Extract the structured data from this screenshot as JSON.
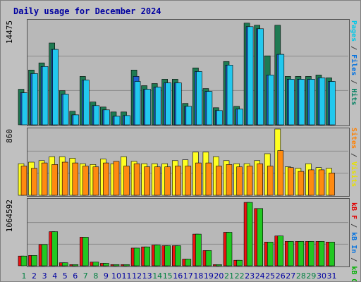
{
  "title": "Daily usage for December 2024",
  "legends": {
    "top": [
      {
        "text": "Pages",
        "color": "#00c8e8"
      },
      {
        "text": " / ",
        "color": "#404040"
      },
      {
        "text": "Files",
        "color": "#0070e0"
      },
      {
        "text": " / ",
        "color": "#404040"
      },
      {
        "text": "Hits",
        "color": "#008060"
      }
    ],
    "mid": [
      {
        "text": "Sites",
        "color": "#ff8000"
      },
      {
        "text": " / ",
        "color": "#404040"
      },
      {
        "text": "Visits",
        "color": "#e8e000"
      }
    ],
    "bot": [
      {
        "text": "kB F",
        "color": "#e00000"
      },
      {
        "text": " / ",
        "color": "#404040"
      },
      {
        "text": "kB In",
        "color": "#0070e0"
      },
      {
        "text": " / ",
        "color": "#404040"
      },
      {
        "text": "kB Out",
        "color": "#00b000"
      }
    ]
  },
  "colors": {
    "hits": "#1e7a52",
    "files": "#1f5fd0",
    "pages": "#22c8ee",
    "visits": "#ffff22",
    "sites": "#ff8a10",
    "kbout": "#22c822",
    "kbf": "#ee1111",
    "weekend_label": "#008040",
    "weekday_label": "#0000a0"
  },
  "chart_data": [
    {
      "type": "bar",
      "title": "Daily usage for December 2024",
      "categories": [
        "1",
        "2",
        "3",
        "4",
        "5",
        "6",
        "7",
        "8",
        "9",
        "10",
        "11",
        "12",
        "13",
        "14",
        "15",
        "16",
        "17",
        "18",
        "19",
        "20",
        "21",
        "22",
        "23",
        "24",
        "25",
        "26",
        "27",
        "28",
        "29",
        "30",
        "31"
      ],
      "weekend_days": [
        "1",
        "7",
        "8",
        "14",
        "15",
        "21",
        "22",
        "28",
        "29"
      ],
      "ymax_label": "14475",
      "ylim": [
        0,
        14475
      ],
      "series": [
        {
          "name": "Hits",
          "values": [
            5000,
            7700,
            8700,
            11500,
            4800,
            1900,
            6800,
            3200,
            2500,
            1800,
            1800,
            7700,
            5500,
            5800,
            6400,
            6400,
            3000,
            8000,
            5100,
            2400,
            8900,
            2600,
            14300,
            14000,
            9700,
            14000,
            6800,
            6800,
            6800,
            7000,
            6600
          ]
        },
        {
          "name": "Files",
          "values": [
            4500,
            7200,
            8200,
            10600,
            4300,
            1400,
            6300,
            2700,
            2100,
            1200,
            1300,
            6800,
            5000,
            5300,
            5900,
            5900,
            2600,
            7500,
            4700,
            2000,
            8400,
            2200,
            13800,
            13500,
            7000,
            9900,
            6400,
            6400,
            6400,
            6600,
            6100
          ]
        },
        {
          "name": "Pages",
          "values": [
            4500,
            7200,
            8200,
            10600,
            4300,
            1400,
            6300,
            2700,
            2100,
            1200,
            1300,
            6100,
            5000,
            5300,
            5900,
            5900,
            2600,
            7500,
            4700,
            2000,
            8400,
            2200,
            13800,
            13500,
            7000,
            9900,
            6400,
            6400,
            6400,
            6600,
            6100
          ]
        }
      ]
    },
    {
      "type": "bar",
      "categories": [
        "1",
        "2",
        "3",
        "4",
        "5",
        "6",
        "7",
        "8",
        "9",
        "10",
        "11",
        "12",
        "13",
        "14",
        "15",
        "16",
        "17",
        "18",
        "19",
        "20",
        "21",
        "22",
        "23",
        "24",
        "25",
        "26",
        "27",
        "28",
        "29",
        "30",
        "31"
      ],
      "ymax_label": "860",
      "ylim": [
        0,
        860
      ],
      "series": [
        {
          "name": "Visits",
          "values": [
            410,
            430,
            450,
            500,
            500,
            480,
            410,
            400,
            470,
            410,
            500,
            440,
            410,
            410,
            410,
            450,
            460,
            560,
            560,
            500,
            450,
            410,
            410,
            450,
            540,
            860,
            370,
            350,
            410,
            360,
            350
          ]
        },
        {
          "name": "Sites",
          "values": [
            380,
            350,
            420,
            400,
            430,
            420,
            380,
            370,
            420,
            440,
            380,
            410,
            370,
            370,
            370,
            380,
            380,
            420,
            420,
            380,
            400,
            370,
            380,
            410,
            380,
            580,
            360,
            310,
            330,
            330,
            290
          ]
        }
      ]
    },
    {
      "type": "bar",
      "categories": [
        "1",
        "2",
        "3",
        "4",
        "5",
        "6",
        "7",
        "8",
        "9",
        "10",
        "11",
        "12",
        "13",
        "14",
        "15",
        "16",
        "17",
        "18",
        "19",
        "20",
        "21",
        "22",
        "23",
        "24",
        "25",
        "26",
        "27",
        "28",
        "29",
        "30",
        "31"
      ],
      "ymax_label": "1064592",
      "ylim": [
        0,
        1064592
      ],
      "series": [
        {
          "name": "kB F",
          "values": [
            160000,
            170000,
            350000,
            560000,
            50000,
            20000,
            470000,
            60000,
            40000,
            20000,
            20000,
            290000,
            310000,
            340000,
            330000,
            330000,
            110000,
            520000,
            250000,
            20000,
            550000,
            90000,
            1040000,
            940000,
            390000,
            490000,
            400000,
            400000,
            400000,
            400000,
            390000
          ]
        },
        {
          "name": "kB Out",
          "values": [
            160000,
            170000,
            350000,
            560000,
            50000,
            20000,
            470000,
            60000,
            40000,
            20000,
            20000,
            290000,
            310000,
            340000,
            330000,
            330000,
            110000,
            520000,
            250000,
            20000,
            550000,
            90000,
            1040000,
            940000,
            390000,
            490000,
            400000,
            400000,
            400000,
            400000,
            390000
          ]
        }
      ]
    }
  ]
}
